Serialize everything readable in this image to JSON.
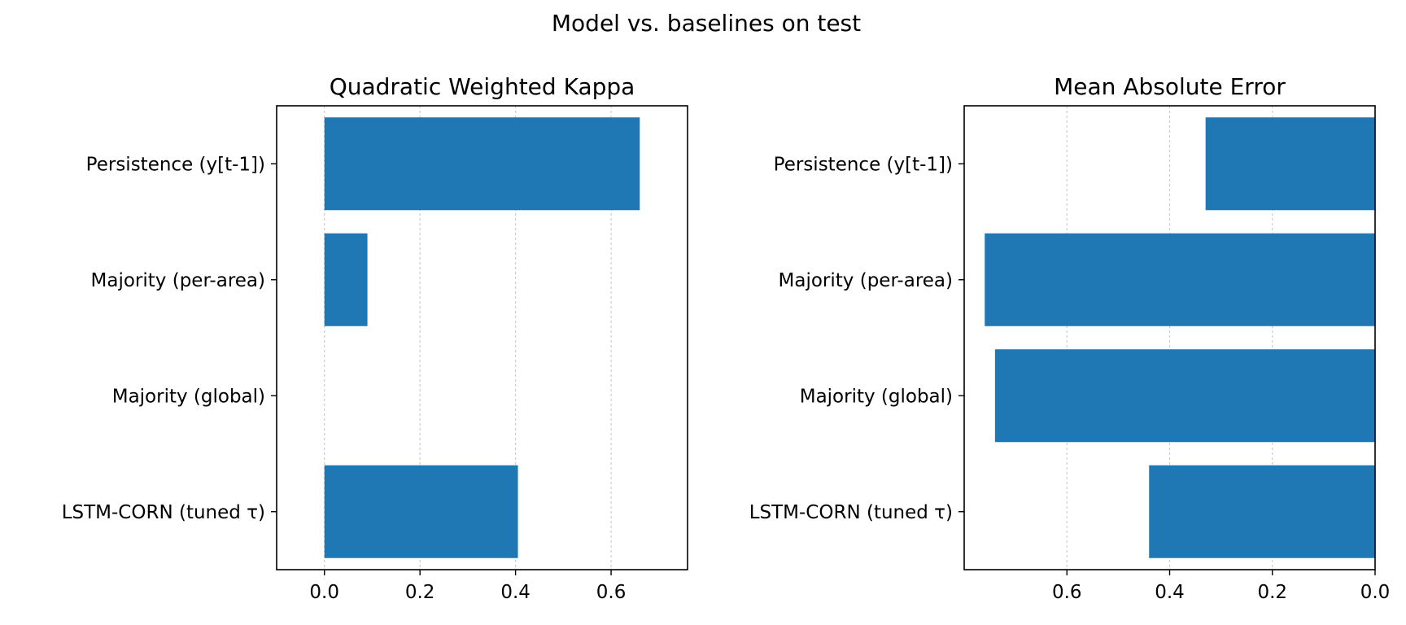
{
  "figure": {
    "title": "Model vs. baselines on test"
  },
  "colors": {
    "bar": "#1f77b4",
    "grid": "#cccccc"
  },
  "chart_data": [
    {
      "type": "bar",
      "orientation": "horizontal",
      "title": "Quadratic Weighted Kappa",
      "categories": [
        "Persistence (y[t-1])",
        "Majority (per-area)",
        "Majority (global)",
        "LSTM-CORN (tuned τ)"
      ],
      "values": [
        0.66,
        0.09,
        0.0,
        0.405
      ],
      "xlim": [
        -0.1,
        0.76
      ],
      "xticks": [
        0.0,
        0.2,
        0.4,
        0.6
      ],
      "xtick_labels": [
        "0.0",
        "0.2",
        "0.4",
        "0.6"
      ],
      "x_inverted": false,
      "grid": "x, dotted"
    },
    {
      "type": "bar",
      "orientation": "horizontal",
      "title": "Mean Absolute Error",
      "categories": [
        "Persistence (y[t-1])",
        "Majority (per-area)",
        "Majority (global)",
        "LSTM-CORN (tuned τ)"
      ],
      "values": [
        0.33,
        0.76,
        0.74,
        0.44
      ],
      "xlim": [
        0.8,
        0.0
      ],
      "xticks": [
        0.6,
        0.4,
        0.2,
        0.0
      ],
      "xtick_labels": [
        "0.6",
        "0.4",
        "0.2",
        "0.0"
      ],
      "x_inverted": true,
      "grid": "x, dotted"
    }
  ]
}
